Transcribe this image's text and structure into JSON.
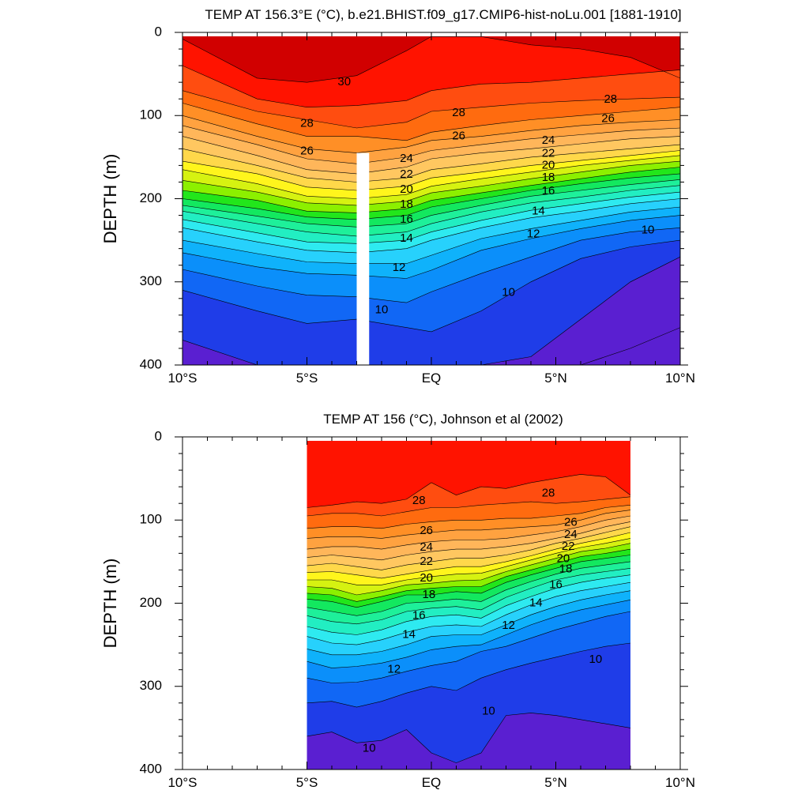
{
  "chart_data": [
    {
      "type": "contour",
      "title": "TEMP AT 156.3°E (°C), b.e21.BHIST.f09_g17.CMIP6-hist-noLu.001 [1881-1910]",
      "xlabel": "",
      "ylabel": "DEPTH (m)",
      "xlim": [
        -10,
        10
      ],
      "ylim": [
        400,
        0
      ],
      "xticks": [
        "10°S",
        "5°S",
        "EQ",
        "5°N",
        "10°N"
      ],
      "yticks": [
        "0",
        "100",
        "200",
        "300",
        "400"
      ],
      "data_coverage": [
        -10,
        10
      ],
      "masked_band": [
        -3.0,
        -2.5
      ],
      "x_nodes": [
        -10,
        -7,
        -5,
        -3,
        -1,
        0,
        2,
        4,
        6,
        8,
        10
      ],
      "isotherm_depths": {
        "30": [
          8,
          55,
          60,
          52,
          22,
          5,
          5,
          15,
          20,
          30,
          55
        ],
        "29": [
          40,
          80,
          90,
          88,
          82,
          70,
          62,
          60,
          55,
          50,
          45
        ],
        "28": [
          70,
          95,
          105,
          115,
          108,
          95,
          90,
          85,
          82,
          80,
          78
        ],
        "27": [
          85,
          110,
          125,
          125,
          130,
          120,
          112,
          105,
          100,
          95,
          90
        ],
        "26": [
          100,
          125,
          140,
          145,
          138,
          130,
          125,
          118,
          112,
          108,
          105
        ],
        "25": [
          112,
          135,
          152,
          158,
          150,
          142,
          135,
          128,
          123,
          118,
          115
        ],
        "24": [
          125,
          148,
          165,
          170,
          162,
          152,
          145,
          140,
          134,
          128,
          125
        ],
        "23": [
          140,
          160,
          175,
          180,
          175,
          165,
          158,
          150,
          145,
          140,
          135
        ],
        "22": [
          155,
          170,
          186,
          190,
          185,
          175,
          168,
          160,
          154,
          148,
          142
        ],
        "21": [
          165,
          182,
          197,
          200,
          195,
          185,
          176,
          168,
          160,
          154,
          148
        ],
        "20": [
          178,
          192,
          205,
          208,
          203,
          193,
          185,
          176,
          168,
          160,
          155
        ],
        "19": [
          190,
          202,
          215,
          217,
          212,
          202,
          193,
          184,
          176,
          168,
          162
        ],
        "18": [
          200,
          212,
          222,
          225,
          220,
          210,
          200,
          190,
          182,
          175,
          170
        ],
        "17": [
          208,
          221,
          230,
          234,
          230,
          220,
          208,
          197,
          190,
          183,
          177
        ],
        "16": [
          215,
          230,
          240,
          245,
          240,
          230,
          216,
          205,
          198,
          190,
          184
        ],
        "15": [
          225,
          241,
          252,
          254,
          250,
          240,
          226,
          214,
          206,
          198,
          192
        ],
        "14": [
          235,
          252,
          262,
          265,
          260,
          250,
          235,
          223,
          215,
          206,
          200
        ],
        "13": [
          250,
          266,
          276,
          278,
          278,
          268,
          248,
          236,
          226,
          216,
          210
        ],
        "12": [
          265,
          282,
          290,
          292,
          296,
          286,
          262,
          248,
          236,
          226,
          220
        ],
        "11": [
          285,
          305,
          316,
          318,
          325,
          312,
          290,
          270,
          250,
          240,
          235
        ],
        "10": [
          310,
          335,
          350,
          345,
          355,
          360,
          335,
          300,
          272,
          258,
          250
        ],
        "9": [
          370,
          400,
          400,
          400,
          400,
          400,
          400,
          390,
          345,
          300,
          270
        ],
        "8": [
          400,
          400,
          400,
          400,
          400,
          400,
          400,
          400,
          400,
          380,
          355
        ]
      },
      "contour_labels": [
        {
          "text": "30",
          "x": -3.5,
          "y": 60
        },
        {
          "text": "28",
          "x": -5.0,
          "y": 110
        },
        {
          "text": "26",
          "x": -5.0,
          "y": 143
        },
        {
          "text": "28",
          "x": 1.1,
          "y": 97
        },
        {
          "text": "26",
          "x": 1.1,
          "y": 125
        },
        {
          "text": "24",
          "x": -1.0,
          "y": 152
        },
        {
          "text": "22",
          "x": -1.0,
          "y": 171
        },
        {
          "text": "20",
          "x": -1.0,
          "y": 189
        },
        {
          "text": "18",
          "x": -1.0,
          "y": 207
        },
        {
          "text": "16",
          "x": -1.0,
          "y": 225
        },
        {
          "text": "14",
          "x": -1.0,
          "y": 248
        },
        {
          "text": "12",
          "x": -1.3,
          "y": 283
        },
        {
          "text": "10",
          "x": -2.0,
          "y": 334
        },
        {
          "text": "24",
          "x": 4.7,
          "y": 130
        },
        {
          "text": "22",
          "x": 4.7,
          "y": 146
        },
        {
          "text": "20",
          "x": 4.7,
          "y": 160
        },
        {
          "text": "18",
          "x": 4.7,
          "y": 175
        },
        {
          "text": "16",
          "x": 4.7,
          "y": 191
        },
        {
          "text": "14",
          "x": 4.3,
          "y": 215
        },
        {
          "text": "12",
          "x": 4.1,
          "y": 243
        },
        {
          "text": "10",
          "x": 3.1,
          "y": 313
        },
        {
          "text": "28",
          "x": 7.2,
          "y": 81
        },
        {
          "text": "26",
          "x": 7.1,
          "y": 104
        },
        {
          "text": "10",
          "x": 8.7,
          "y": 238
        }
      ]
    },
    {
      "type": "contour",
      "title": "TEMP AT 156 (°C), Johnson et al (2002)",
      "xlabel": "",
      "ylabel": "DEPTH (m)",
      "xlim": [
        -10,
        10
      ],
      "ylim": [
        400,
        0
      ],
      "xticks": [
        "10°S",
        "5°S",
        "EQ",
        "5°N",
        "10°N"
      ],
      "yticks": [
        "0",
        "100",
        "200",
        "300",
        "400"
      ],
      "data_coverage": [
        -5,
        8
      ],
      "x_nodes": [
        -5,
        -4,
        -3,
        -2,
        -1,
        0,
        1,
        2,
        3,
        4,
        5,
        6,
        7,
        8
      ],
      "isotherm_depths": {
        "29": [
          85,
          82,
          78,
          80,
          75,
          55,
          70,
          60,
          62,
          55,
          50,
          45,
          48,
          70
        ],
        "28": [
          95,
          92,
          92,
          95,
          90,
          85,
          85,
          82,
          80,
          78,
          80,
          78,
          75,
          72
        ],
        "27": [
          110,
          108,
          108,
          110,
          105,
          102,
          100,
          100,
          98,
          98,
          95,
          92,
          85,
          82
        ],
        "26": [
          122,
          120,
          120,
          122,
          118,
          115,
          112,
          112,
          110,
          108,
          106,
          100,
          92,
          88
        ],
        "25": [
          135,
          132,
          132,
          135,
          130,
          126,
          124,
          124,
          122,
          118,
          114,
          108,
          100,
          95
        ],
        "24": [
          145,
          142,
          145,
          148,
          142,
          138,
          135,
          135,
          132,
          128,
          122,
          116,
          108,
          102
        ],
        "23": [
          155,
          152,
          156,
          160,
          154,
          150,
          146,
          146,
          142,
          136,
          128,
          122,
          115,
          108
        ],
        "22": [
          163,
          162,
          166,
          170,
          165,
          160,
          156,
          156,
          150,
          143,
          135,
          128,
          122,
          115
        ],
        "21": [
          172,
          172,
          178,
          178,
          172,
          168,
          165,
          164,
          156,
          148,
          140,
          133,
          128,
          122
        ],
        "20": [
          180,
          182,
          190,
          185,
          178,
          176,
          173,
          172,
          162,
          154,
          146,
          138,
          134,
          128
        ],
        "19": [
          188,
          190,
          198,
          192,
          185,
          182,
          180,
          180,
          168,
          160,
          152,
          144,
          140,
          135
        ],
        "18": [
          195,
          198,
          205,
          198,
          190,
          190,
          186,
          188,
          175,
          166,
          158,
          150,
          146,
          142
        ],
        "17": [
          205,
          210,
          215,
          210,
          200,
          198,
          195,
          198,
          184,
          174,
          165,
          158,
          154,
          150
        ],
        "16": [
          215,
          222,
          225,
          220,
          210,
          206,
          204,
          208,
          193,
          182,
          172,
          166,
          162,
          158
        ],
        "15": [
          228,
          235,
          238,
          232,
          222,
          216,
          214,
          218,
          203,
          192,
          182,
          175,
          170,
          166
        ],
        "14": [
          240,
          248,
          250,
          244,
          235,
          228,
          226,
          228,
          214,
          202,
          192,
          185,
          180,
          175
        ],
        "13": [
          255,
          262,
          262,
          258,
          250,
          240,
          238,
          238,
          226,
          214,
          204,
          196,
          190,
          185
        ],
        "12": [
          270,
          278,
          276,
          272,
          265,
          256,
          252,
          250,
          238,
          226,
          216,
          208,
          202,
          196
        ],
        "11": [
          290,
          296,
          295,
          290,
          282,
          275,
          270,
          258,
          252,
          242,
          232,
          224,
          216,
          210
        ],
        "10": [
          320,
          318,
          325,
          318,
          308,
          300,
          305,
          290,
          280,
          272,
          265,
          258,
          252,
          248
        ],
        "9": [
          360,
          355,
          368,
          365,
          352,
          380,
          392,
          380,
          335,
          332,
          335,
          340,
          345,
          350
        ],
        "8": [
          400,
          400,
          400,
          400,
          400,
          400,
          400,
          400,
          400,
          400,
          400,
          400,
          400,
          400
        ]
      },
      "contour_labels": [
        {
          "text": "28",
          "x": -0.5,
          "y": 77
        },
        {
          "text": "28",
          "x": 4.7,
          "y": 68
        },
        {
          "text": "26",
          "x": -0.2,
          "y": 113
        },
        {
          "text": "24",
          "x": -0.2,
          "y": 133
        },
        {
          "text": "22",
          "x": -0.2,
          "y": 150
        },
        {
          "text": "20",
          "x": -0.2,
          "y": 170
        },
        {
          "text": "18",
          "x": -0.1,
          "y": 190
        },
        {
          "text": "16",
          "x": -0.5,
          "y": 215
        },
        {
          "text": "14",
          "x": -0.9,
          "y": 238
        },
        {
          "text": "12",
          "x": -1.5,
          "y": 280
        },
        {
          "text": "12",
          "x": 3.1,
          "y": 227
        },
        {
          "text": "14",
          "x": 4.2,
          "y": 200
        },
        {
          "text": "16",
          "x": 5.0,
          "y": 178
        },
        {
          "text": "18",
          "x": 5.4,
          "y": 159
        },
        {
          "text": "20",
          "x": 5.3,
          "y": 147
        },
        {
          "text": "22",
          "x": 5.5,
          "y": 132
        },
        {
          "text": "24",
          "x": 5.6,
          "y": 118
        },
        {
          "text": "26",
          "x": 5.6,
          "y": 103
        },
        {
          "text": "10",
          "x": 6.6,
          "y": 268
        },
        {
          "text": "10",
          "x": 2.3,
          "y": 330
        },
        {
          "text": "10",
          "x": -2.5,
          "y": 375
        }
      ]
    }
  ],
  "palette": {
    "8": "#5a1fd1",
    "9": "#1f3de8",
    "10": "#1167f5",
    "11": "#0b8ffa",
    "12": "#0fb2fb",
    "13": "#27d1fc",
    "14": "#2eeaf0",
    "15": "#22eec2",
    "16": "#1ef09a",
    "17": "#13e85f",
    "18": "#22e61b",
    "19": "#8cf000",
    "20": "#d6f211",
    "21": "#fff51c",
    "22": "#ffd84a",
    "23": "#ffc760",
    "24": "#ffb65a",
    "25": "#ffa240",
    "26": "#ff8f26",
    "27": "#ff6b0f",
    "28": "#ff4d10",
    "29": "#ff1300",
    "30": "#d10000"
  }
}
